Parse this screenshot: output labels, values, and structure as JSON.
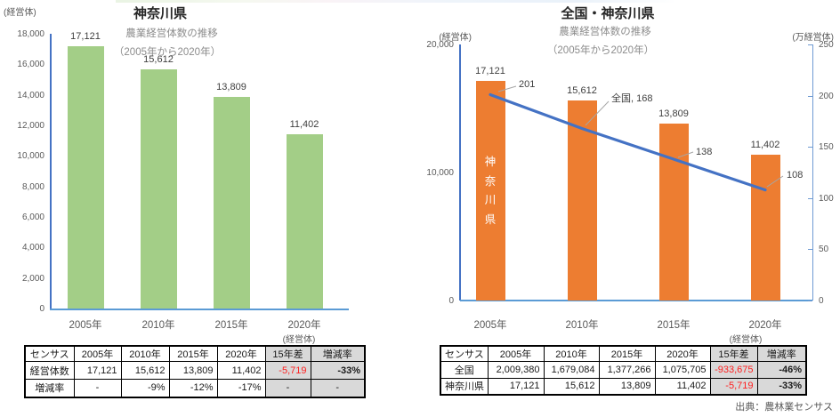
{
  "page": {
    "source": "出典：農林業センサス"
  },
  "chart_data": [
    {
      "type": "bar",
      "title": "神奈川県",
      "subtitle": "農業経営体数の推移",
      "period": "（2005年から2020年）",
      "unit_label": "(経営体)",
      "categories": [
        "2005年",
        "2010年",
        "2015年",
        "2020年"
      ],
      "values": [
        17121,
        15612,
        13809,
        11402
      ],
      "value_labels": [
        "17,121",
        "15,612",
        "13,809",
        "11,402"
      ],
      "ylim": [
        0,
        18000
      ],
      "ytick_step": 2000,
      "bar_color": "#a3ce87",
      "grid": false,
      "legend_position": "none"
    },
    {
      "type": "bar+line",
      "title": "全国・神奈川県",
      "subtitle": "農業経営体数の推移",
      "period": "（2005年から2020年）",
      "categories": [
        "2005年",
        "2010年",
        "2015年",
        "2020年"
      ],
      "left_axis": {
        "unit_label": "(経営体)",
        "ylim": [
          0,
          20000
        ],
        "ticks": [
          "20,000",
          "10,000",
          "0"
        ]
      },
      "right_axis": {
        "unit_label": "(万経営体)",
        "ylim": [
          0,
          250
        ],
        "ytick_step": 50
      },
      "series": [
        {
          "name": "神奈川県",
          "type": "bar",
          "axis": "left",
          "values": [
            17121,
            15612,
            13809,
            11402
          ],
          "value_labels": [
            "17,121",
            "15,612",
            "13,809",
            "11,402"
          ],
          "color": "#ed7d31",
          "in_bar_label": "神奈川県"
        },
        {
          "name": "全国",
          "type": "line",
          "axis": "right",
          "values": [
            201,
            168,
            138,
            108
          ],
          "point_labels": [
            "201",
            "全国, 168",
            "138",
            "108"
          ],
          "color": "#4472c4"
        }
      ],
      "grid": false,
      "legend_position": "none"
    }
  ],
  "tables": {
    "unit_label": "(経営体)",
    "left": {
      "headers": [
        "センサス",
        "2005年",
        "2010年",
        "2015年",
        "2020年",
        "15年差",
        "増減率"
      ],
      "rows": [
        {
          "label": "経営体数",
          "cells": [
            "17,121",
            "15,612",
            "13,809",
            "11,402",
            "-5,719",
            "-33%"
          ]
        },
        {
          "label": "増減率",
          "cells": [
            "-",
            "-9%",
            "-12%",
            "-17%",
            "-",
            "-"
          ]
        }
      ]
    },
    "right": {
      "headers": [
        "センサス",
        "2005年",
        "2010年",
        "2015年",
        "2020年",
        "15年差",
        "増減率"
      ],
      "rows": [
        {
          "label": "全国",
          "cells": [
            "2,009,380",
            "1,679,084",
            "1,377,266",
            "1,075,705",
            "-933,675",
            "-46%"
          ]
        },
        {
          "label": "神奈川県",
          "cells": [
            "17,121",
            "15,612",
            "13,809",
            "11,402",
            "-5,719",
            "-33%"
          ]
        }
      ]
    }
  },
  "colors": {
    "bar_green": "#a3ce87",
    "bar_orange": "#ed7d31",
    "line_blue": "#4472c4",
    "axis_blue": "#4472c4",
    "axis_light_blue": "#5b9bd5",
    "title_blue": "#2e75b6",
    "tick_gray": "#595959",
    "table_gray": "#d9d9d9",
    "negative_red": "#ff2020"
  }
}
